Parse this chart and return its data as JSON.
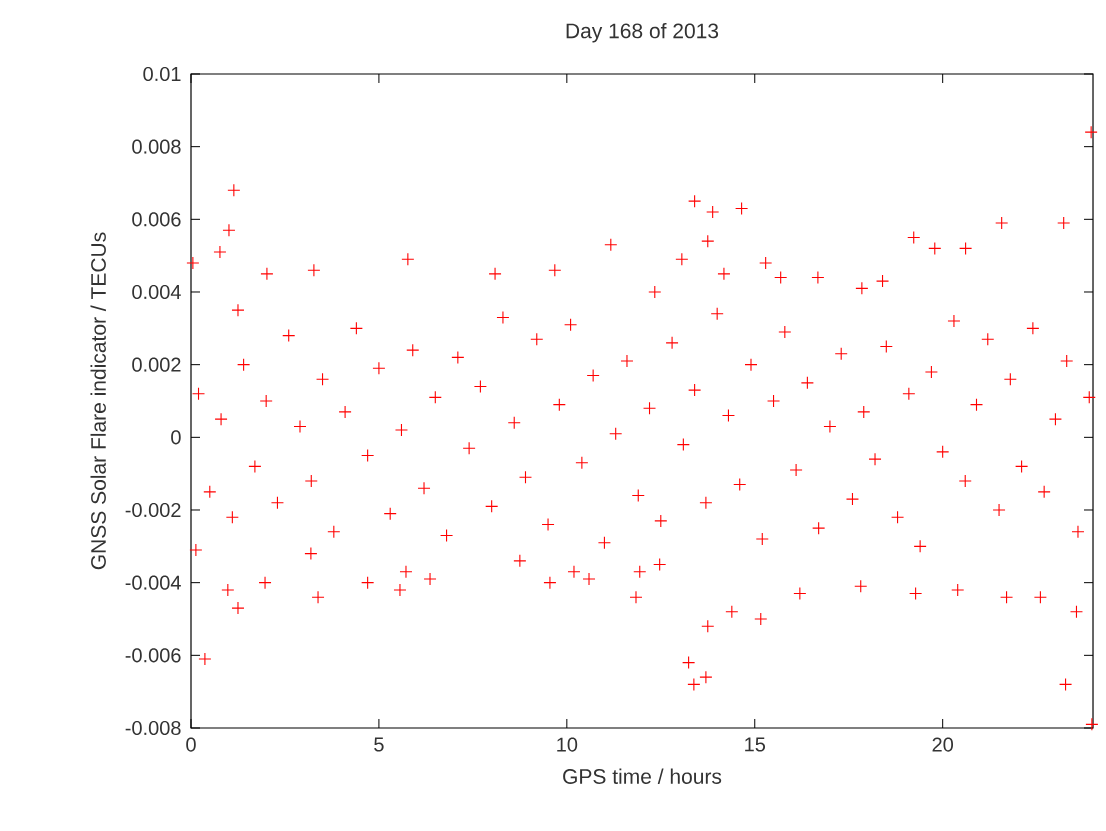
{
  "chart_data": {
    "type": "scatter",
    "title": "Day 168 of 2013",
    "xlabel": "GPS time / hours",
    "ylabel": "GNSS Solar Flare indicator / TECUs",
    "xlim": [
      0,
      24
    ],
    "ylim": [
      -0.008,
      0.01
    ],
    "xticks": [
      0,
      5,
      10,
      15,
      20
    ],
    "yticks": [
      -0.008,
      -0.006,
      -0.004,
      -0.002,
      0,
      0.002,
      0.004,
      0.006,
      0.008,
      0.01
    ],
    "marker": "cross",
    "series": [
      {
        "color": "#ff0000",
        "x": [
          0.05,
          1.14,
          1.01,
          0.37,
          1.25,
          0.98,
          11.17,
          13.4,
          13.88,
          14.65,
          13.75,
          13.24,
          13.38,
          13.7,
          13.75,
          11.84,
          14.39,
          15.16,
          23.95,
          23.97,
          23.27,
          23.22,
          23.56,
          21.57,
          20.61,
          19.23,
          19.28,
          20.4,
          21.7,
          22.6,
          8.09,
          9.68,
          5.77,
          3.27,
          3.38,
          4.7,
          3.19,
          5.56,
          5.72,
          6.36,
          8.75,
          9.55,
          10.19,
          10.59,
          16.2,
          17.82,
          17.85,
          18.4,
          16.68,
          15.69,
          15.29,
          14.18,
          13.06,
          12.34,
          12.47,
          11.94,
          2.02,
          0.77,
          1.25,
          0.13,
          1.97,
          19.79,
          0.2,
          0.5,
          0.8,
          1.1,
          1.4,
          1.7,
          2.0,
          2.3,
          2.6,
          2.9,
          3.2,
          3.5,
          3.8,
          4.1,
          4.4,
          4.7,
          5.0,
          5.3,
          5.6,
          5.9,
          6.2,
          6.5,
          6.8,
          7.1,
          7.4,
          7.7,
          8.0,
          8.3,
          8.6,
          8.9,
          9.2,
          9.5,
          9.8,
          10.1,
          10.4,
          10.7,
          11.0,
          11.3,
          11.6,
          11.9,
          12.2,
          12.5,
          12.8,
          13.1,
          13.4,
          13.7,
          14.0,
          14.3,
          14.6,
          14.9,
          15.2,
          15.5,
          15.8,
          16.1,
          16.4,
          16.7,
          17.0,
          17.3,
          17.6,
          17.9,
          18.2,
          18.5,
          18.8,
          19.1,
          19.4,
          19.7,
          20.0,
          20.3,
          20.6,
          20.9,
          21.2,
          21.5,
          21.8,
          22.1,
          22.4,
          22.7,
          23.0,
          23.3,
          23.6,
          23.9
        ],
        "values": [
          0.0048,
          0.0068,
          0.0057,
          -0.0061,
          -0.0047,
          -0.0042,
          0.0053,
          0.0065,
          0.0062,
          0.0063,
          0.0054,
          -0.0062,
          -0.0068,
          -0.0066,
          -0.0052,
          -0.0044,
          -0.0048,
          -0.005,
          0.0084,
          -0.0079,
          -0.0068,
          0.0059,
          -0.0048,
          0.0059,
          0.0052,
          0.0055,
          -0.0043,
          -0.0042,
          -0.0044,
          -0.0044,
          0.0045,
          0.0046,
          0.0049,
          0.0046,
          -0.0044,
          -0.004,
          -0.0032,
          -0.0042,
          -0.0037,
          -0.0039,
          -0.0034,
          -0.004,
          -0.0037,
          -0.0039,
          -0.0043,
          -0.0041,
          0.0041,
          0.0043,
          0.0044,
          0.0044,
          0.0048,
          0.0045,
          0.0049,
          0.004,
          -0.0035,
          -0.0037,
          0.0045,
          0.0051,
          0.0035,
          -0.0031,
          -0.004,
          0.0052,
          0.0012,
          -0.0015,
          0.0005,
          -0.0022,
          0.002,
          -0.0008,
          0.001,
          -0.0018,
          0.0028,
          0.0003,
          -0.0012,
          0.0016,
          -0.0026,
          0.0007,
          0.003,
          -0.0005,
          0.0019,
          -0.0021,
          0.0002,
          0.0024,
          -0.0014,
          0.0011,
          -0.0027,
          0.0022,
          -0.0003,
          0.0014,
          -0.0019,
          0.0033,
          0.0004,
          -0.0011,
          0.0027,
          -0.0024,
          0.0009,
          0.0031,
          -0.0007,
          0.0017,
          -0.0029,
          0.0001,
          0.0021,
          -0.0016,
          0.0008,
          -0.0023,
          0.0026,
          -0.0002,
          0.0013,
          -0.0018,
          0.0034,
          0.0006,
          -0.0013,
          0.002,
          -0.0028,
          0.001,
          0.0029,
          -0.0009,
          0.0015,
          -0.0025,
          0.0003,
          0.0023,
          -0.0017,
          0.0007,
          -0.0006,
          0.0025,
          -0.0022,
          0.0012,
          -0.003,
          0.0018,
          -0.0004,
          0.0032,
          -0.0012,
          0.0009,
          0.0027,
          -0.002,
          0.0016,
          -0.0008,
          0.003,
          -0.0015,
          0.0005,
          0.0021,
          -0.0026,
          0.0011
        ]
      }
    ]
  }
}
